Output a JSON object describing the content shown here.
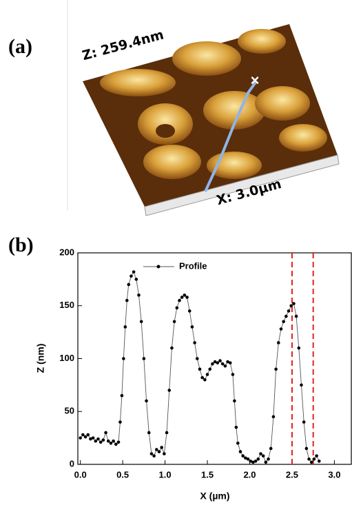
{
  "panel_a": {
    "label": "(a)",
    "z_label": "Z: 259.4nm",
    "x_label": "X: 3.0µm"
  },
  "chart_data": {
    "type": "line",
    "panel_label": "(b)",
    "x_label": "X (µm)",
    "y_label": "Z (nm)",
    "x": [
      0.0,
      0.03,
      0.06,
      0.09,
      0.12,
      0.15,
      0.18,
      0.21,
      0.24,
      0.27,
      0.3,
      0.33,
      0.36,
      0.39,
      0.42,
      0.45,
      0.47,
      0.49,
      0.51,
      0.53,
      0.55,
      0.57,
      0.6,
      0.63,
      0.66,
      0.69,
      0.72,
      0.75,
      0.78,
      0.81,
      0.84,
      0.87,
      0.9,
      0.93,
      0.96,
      0.99,
      1.02,
      1.05,
      1.08,
      1.11,
      1.14,
      1.17,
      1.2,
      1.23,
      1.26,
      1.29,
      1.32,
      1.35,
      1.38,
      1.41,
      1.44,
      1.47,
      1.5,
      1.53,
      1.56,
      1.59,
      1.62,
      1.65,
      1.68,
      1.71,
      1.74,
      1.77,
      1.8,
      1.82,
      1.84,
      1.86,
      1.89,
      1.92,
      1.95,
      1.98,
      2.01,
      2.04,
      2.07,
      2.1,
      2.13,
      2.16,
      2.19,
      2.22,
      2.25,
      2.28,
      2.31,
      2.34,
      2.37,
      2.4,
      2.43,
      2.46,
      2.49,
      2.52,
      2.55,
      2.58,
      2.61,
      2.64,
      2.67,
      2.7,
      2.73,
      2.76,
      2.79,
      2.82
    ],
    "series": [
      {
        "name": "Profile",
        "color": "#000000",
        "values": [
          25,
          28,
          26,
          28,
          24,
          25,
          22,
          24,
          21,
          23,
          30,
          22,
          20,
          22,
          19,
          21,
          40,
          65,
          100,
          130,
          155,
          170,
          178,
          182,
          175,
          160,
          135,
          100,
          60,
          30,
          10,
          8,
          14,
          12,
          16,
          10,
          30,
          70,
          110,
          135,
          148,
          155,
          158,
          160,
          158,
          145,
          130,
          115,
          100,
          90,
          82,
          80,
          85,
          90,
          95,
          97,
          96,
          98,
          95,
          93,
          97,
          96,
          85,
          60,
          35,
          20,
          12,
          8,
          6,
          5,
          3,
          2,
          3,
          5,
          10,
          8,
          2,
          5,
          15,
          45,
          90,
          115,
          128,
          135,
          140,
          145,
          150,
          152,
          140,
          110,
          75,
          40,
          15,
          5,
          2,
          5,
          8,
          3
        ]
      }
    ],
    "xlim": [
      -0.03,
      3.2
    ],
    "ylim": [
      0,
      200
    ],
    "xticks": [
      {
        "value": 0,
        "label": "0.0"
      },
      {
        "value": 0.5,
        "label": "0.5"
      },
      {
        "value": 1,
        "label": "1.0"
      },
      {
        "value": 1.5,
        "label": "1.5"
      },
      {
        "value": 2,
        "label": "2.0"
      },
      {
        "value": 2.5,
        "label": "2.5"
      },
      {
        "value": 3,
        "label": "3.0"
      }
    ],
    "yticks": [
      0,
      50,
      100,
      150,
      200
    ],
    "vlines": [
      2.5,
      2.75
    ],
    "vline_color": "#e02020",
    "legend": "top-left"
  }
}
